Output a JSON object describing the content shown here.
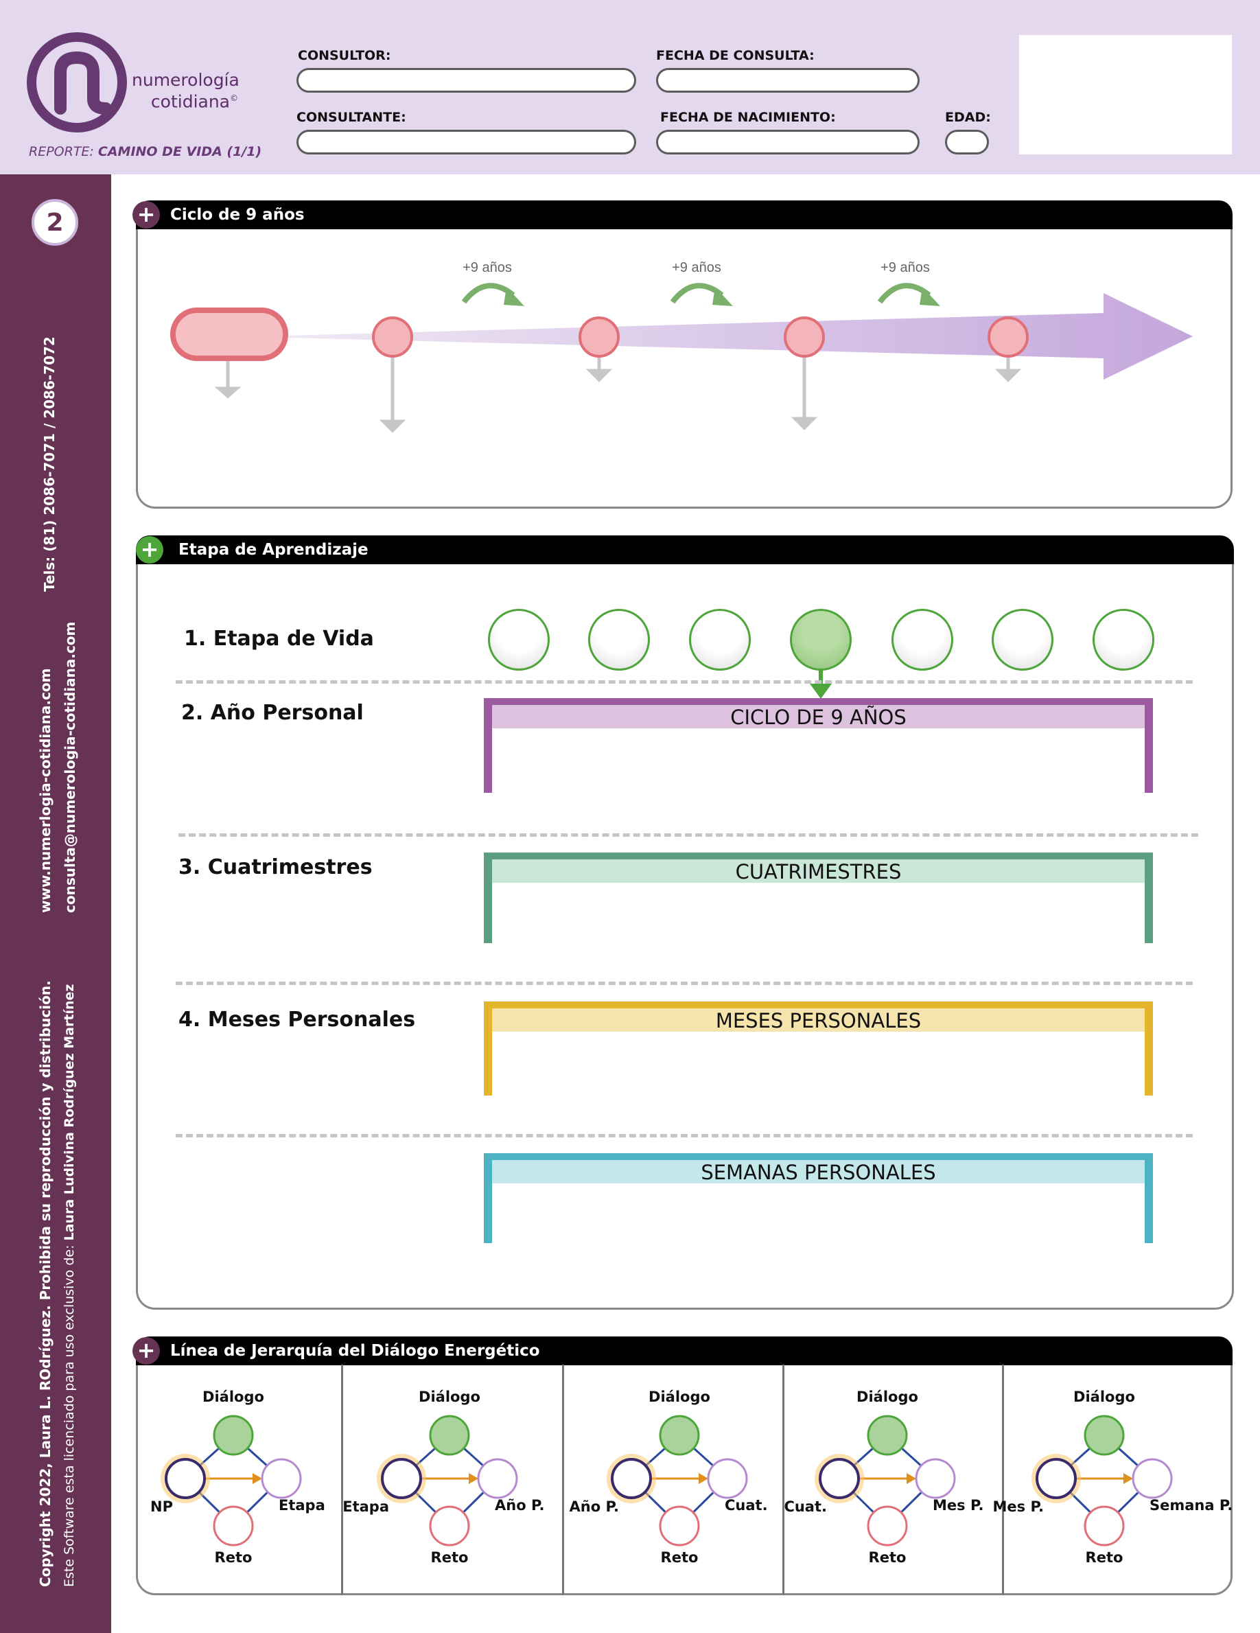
{
  "header": {
    "brand_line1": "numerología",
    "brand_line2": "cotidiana",
    "brand_mark": "©",
    "report_prefix": "REPORTE:",
    "report_name": "CAMINO DE VIDA (1/1)",
    "fields": {
      "consultor": "CONSULTOR:",
      "fecha_consulta": "FECHA DE CONSULTA:",
      "consultante": "CONSULTANTE:",
      "fecha_nacimiento": "FECHA DE NACIMIENTO:",
      "edad": "EDAD:"
    }
  },
  "sidebar": {
    "page_number": "2",
    "phones": "Tels: (81) 2086-7071 / 2086-7072",
    "website": "www.numerlogia-cotidiana.com",
    "email": "consulta@numerologia-cotidiana.com",
    "copyright": "Copyright 2022, Laura L. ROdríguez. Prohibida su reproducción y distribución.",
    "license_prefix": "Este  Software esta licenciado para uso exclusivo de: ",
    "license_name": "Laura Ludivina Rodríguez Martínez"
  },
  "ciclo": {
    "title": "Ciclo de 9 años",
    "step_labels": [
      "+9 años",
      "+9 años",
      "+9 años"
    ]
  },
  "etapa": {
    "title": "Etapa de Aprendizaje",
    "rows": [
      "1. Etapa de Vida",
      "2. Año Personal",
      "3. Cuatrimestres",
      "4. Meses Personales"
    ],
    "active_stage": 4,
    "stage_count": 7,
    "bands": [
      "CICLO DE 9 AÑOS",
      "CUATRIMESTRES",
      "MESES PERSONALES",
      "SEMANAS PERSONALES"
    ]
  },
  "jerarquia": {
    "title": "Línea de Jerarquía del Diálogo Energético",
    "diagrams": [
      {
        "top": "Diálogo",
        "left": "NP",
        "right": "Etapa",
        "bottom": "Reto"
      },
      {
        "top": "Diálogo",
        "left": "Etapa",
        "right": "Año P.",
        "bottom": "Reto"
      },
      {
        "top": "Diálogo",
        "left": "Año P.",
        "right": "Cuat.",
        "bottom": "Reto"
      },
      {
        "top": "Diálogo",
        "left": "Cuat.",
        "right": "Mes P.",
        "bottom": "Reto"
      },
      {
        "top": "Diálogo",
        "left": "Mes P.",
        "right": "Semana P.",
        "bottom": "Reto"
      }
    ]
  },
  "colors": {
    "header_bg": "#e4d8ef",
    "sidebar_bg": "#663354",
    "purple": "#9b5aa0",
    "green": "#5b9e82",
    "yellow": "#e5b42d",
    "cyan": "#4db3c3",
    "stage_green": "#4ea53a"
  }
}
